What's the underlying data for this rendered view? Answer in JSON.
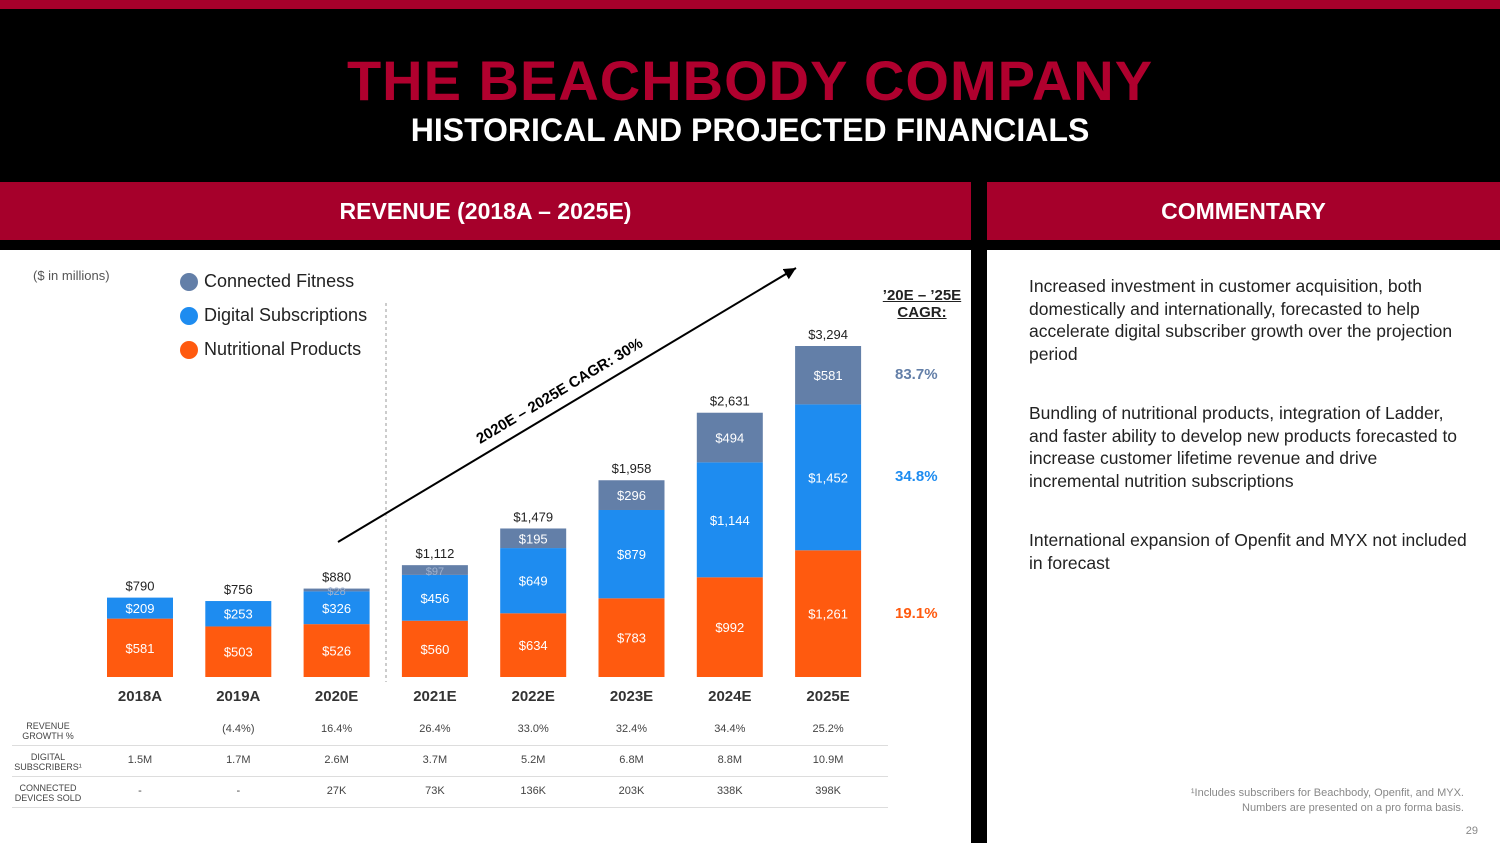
{
  "header": {
    "title": "THE BEACHBODY COMPANY",
    "subtitle": "HISTORICAL AND PROJECTED FINANCIALS"
  },
  "sections": {
    "left": "REVENUE (2018A – 2025E)",
    "right": "COMMENTARY"
  },
  "colors": {
    "brand_red": "#a6002b",
    "connected_fitness": "#637fa8",
    "digital": "#1e8cf0",
    "nutrition": "#ff5a0f"
  },
  "units_note": "($ in millions)",
  "legend": [
    "Connected Fitness",
    "Digital Subscriptions",
    "Nutritional Products"
  ],
  "trend_label": "2020E – 2025E CAGR: 30%",
  "cagr": {
    "heading_line1": "’20E – ’25E",
    "heading_line2": "CAGR:",
    "connected_fitness": "83.7%",
    "digital": "34.8%",
    "nutrition": "19.1%"
  },
  "chart_data": {
    "type": "bar",
    "stacked": true,
    "title": "REVENUE (2018A – 2025E)",
    "units": "$ in millions",
    "categories": [
      "2018A",
      "2019A",
      "2020E",
      "2021E",
      "2022E",
      "2023E",
      "2024E",
      "2025E"
    ],
    "series": [
      {
        "name": "Nutritional Products",
        "values": [
          581,
          503,
          526,
          560,
          634,
          783,
          992,
          1261
        ],
        "labels": [
          "$581",
          "$503",
          "$526",
          "$560",
          "$634",
          "$783",
          "$992",
          "$1,261"
        ]
      },
      {
        "name": "Digital Subscriptions",
        "values": [
          209,
          253,
          326,
          456,
          649,
          879,
          1144,
          1452
        ],
        "labels": [
          "$209",
          "$253",
          "$326",
          "$456",
          "$649",
          "$879",
          "$1,144",
          "$1,452"
        ]
      },
      {
        "name": "Connected Fitness",
        "values": [
          0,
          0,
          28,
          97,
          195,
          296,
          494,
          581
        ],
        "labels": [
          "",
          "",
          "$28",
          "$97",
          "$195",
          "$296",
          "$494",
          "$581"
        ]
      }
    ],
    "totals": [
      790,
      756,
      880,
      1112,
      1479,
      1958,
      2631,
      3294
    ],
    "total_labels": [
      "$790",
      "$756",
      "$880",
      "$1,112",
      "$1,479",
      "$1,958",
      "$2,631",
      "$3,294"
    ],
    "ylim": [
      0,
      3294
    ],
    "grid": false,
    "legend_position": "top-left"
  },
  "metrics": [
    {
      "label_line1": "REVENUE",
      "label_line2": "GROWTH %",
      "values": [
        "",
        "(4.4%)",
        "16.4%",
        "26.4%",
        "33.0%",
        "32.4%",
        "34.4%",
        "25.2%"
      ]
    },
    {
      "label_line1": "DIGITAL",
      "label_line2": "SUBSCRIBERS¹",
      "values": [
        "1.5M",
        "1.7M",
        "2.6M",
        "3.7M",
        "5.2M",
        "6.8M",
        "8.8M",
        "10.9M"
      ]
    },
    {
      "label_line1": "CONNECTED",
      "label_line2": "DEVICES SOLD",
      "values": [
        "-",
        "-",
        "27K",
        "73K",
        "136K",
        "203K",
        "338K",
        "398K"
      ]
    }
  ],
  "commentary": [
    "Increased investment in customer acquisition, both domestically and internationally, forecasted to help accelerate digital subscriber growth over the projection period",
    "Bundling of nutritional products, integration of Ladder, and faster ability to develop new products forecasted to increase customer lifetime revenue and drive incremental nutrition subscriptions",
    "International expansion of Openfit and MYX not included in forecast"
  ],
  "footnote_line1": "¹Includes subscribers for Beachbody, Openfit, and MYX.",
  "footnote_line2": "Numbers are presented on a pro forma basis.",
  "page_number": "29"
}
